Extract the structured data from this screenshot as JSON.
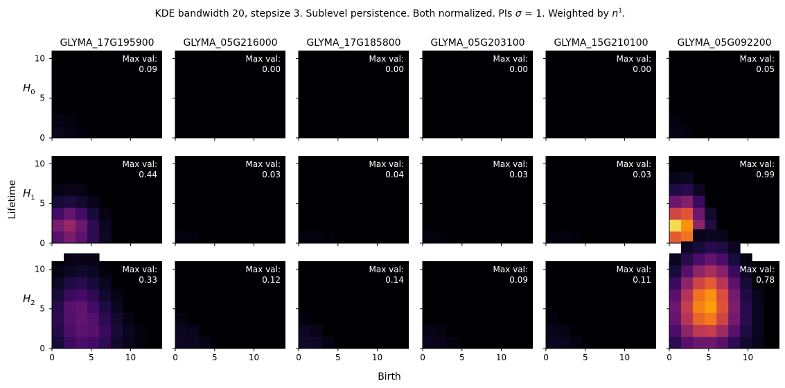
{
  "chart_data": {
    "type": "heatmap",
    "title_parts": [
      "KDE bandwidth 20, stepsize 3. Sublevel persistence. Both normalized. PIs ",
      "σ",
      " = 1. Weighted by ",
      "n",
      "1",
      "."
    ],
    "xlabel": "Birth",
    "ylabel": "Lifetime",
    "xlim": [
      0,
      14
    ],
    "ylim": [
      0,
      11
    ],
    "xticks": [
      "0",
      "5",
      "10"
    ],
    "yticks": [
      "0",
      "5",
      "10"
    ],
    "colormap": "inferno",
    "genes": [
      "GLYMA_17G195900",
      "GLYMA_05G216000",
      "GLYMA_17G185800",
      "GLYMA_05G203100",
      "GLYMA_15G210100",
      "GLYMA_05G092200"
    ],
    "homology": [
      "H0",
      "H1",
      "H2"
    ],
    "max_label": "Max val:",
    "max_values": [
      [
        "0.09",
        "0.00",
        "0.00",
        "0.00",
        "0.00",
        "0.05"
      ],
      [
        "0.44",
        "0.03",
        "0.04",
        "0.03",
        "0.03",
        "0.99"
      ],
      [
        "0.33",
        "0.12",
        "0.14",
        "0.09",
        "0.11",
        "0.78"
      ]
    ],
    "cells": [
      [
        [
          [
            0,
            0,
            0.045
          ],
          [
            1,
            0,
            0.035
          ],
          [
            0,
            1,
            0.03
          ],
          [
            1,
            1,
            0.02
          ],
          [
            2,
            0,
            0.015
          ]
        ],
        [],
        [],
        [],
        [],
        [
          [
            0,
            0,
            0.03
          ],
          [
            0,
            1,
            0.02
          ],
          [
            1,
            0,
            0.02
          ]
        ]
      ],
      [
        [
          [
            0,
            0,
            0.25
          ],
          [
            1,
            0,
            0.33
          ],
          [
            2,
            0,
            0.26
          ],
          [
            3,
            0,
            0.15
          ],
          [
            4,
            0,
            0.06
          ],
          [
            0,
            1,
            0.33
          ],
          [
            1,
            1,
            0.4
          ],
          [
            2,
            1,
            0.3
          ],
          [
            3,
            1,
            0.15
          ],
          [
            4,
            1,
            0.05
          ],
          [
            0,
            2,
            0.2
          ],
          [
            1,
            2,
            0.28
          ],
          [
            2,
            2,
            0.2
          ],
          [
            3,
            2,
            0.1
          ],
          [
            4,
            2,
            0.03
          ],
          [
            0,
            3,
            0.09
          ],
          [
            1,
            3,
            0.12
          ],
          [
            2,
            3,
            0.08
          ],
          [
            3,
            3,
            0.04
          ],
          [
            0,
            4,
            0.03
          ],
          [
            1,
            4,
            0.04
          ],
          [
            2,
            4,
            0.03
          ]
        ],
        [
          [
            0,
            0,
            0.02
          ],
          [
            1,
            0,
            0.015
          ]
        ],
        [
          [
            0,
            0,
            0.02
          ],
          [
            1,
            0,
            0.02
          ],
          [
            2,
            0,
            0.015
          ]
        ],
        [
          [
            0,
            0,
            0.02
          ],
          [
            1,
            0,
            0.015
          ]
        ],
        [
          [
            0,
            0,
            0.02
          ],
          [
            1,
            0,
            0.02
          ],
          [
            2,
            0,
            0.015
          ]
        ],
        [
          [
            0,
            0,
            0.62
          ],
          [
            1,
            0,
            0.68
          ],
          [
            2,
            0,
            0.4
          ],
          [
            3,
            0,
            0.15
          ],
          [
            4,
            0,
            0.05
          ],
          [
            0,
            1,
            0.9
          ],
          [
            1,
            1,
            0.75
          ],
          [
            2,
            1,
            0.38
          ],
          [
            3,
            1,
            0.12
          ],
          [
            0,
            2,
            0.55
          ],
          [
            1,
            2,
            0.6
          ],
          [
            2,
            2,
            0.3
          ],
          [
            3,
            2,
            0.08
          ],
          [
            0,
            3,
            0.3
          ],
          [
            1,
            3,
            0.35
          ],
          [
            2,
            3,
            0.18
          ],
          [
            0,
            4,
            0.12
          ],
          [
            1,
            4,
            0.14
          ],
          [
            2,
            4,
            0.06
          ],
          [
            0,
            5,
            0.04
          ],
          [
            1,
            5,
            0.05
          ]
        ]
      ],
      [
        [
          [
            0,
            0,
            0.1
          ],
          [
            1,
            0,
            0.18
          ],
          [
            2,
            0,
            0.22
          ],
          [
            3,
            0,
            0.2
          ],
          [
            4,
            0,
            0.15
          ],
          [
            5,
            0,
            0.08
          ],
          [
            6,
            0,
            0.04
          ],
          [
            7,
            0,
            0.02
          ],
          [
            0,
            1,
            0.13
          ],
          [
            1,
            1,
            0.22
          ],
          [
            2,
            1,
            0.26
          ],
          [
            3,
            1,
            0.25
          ],
          [
            4,
            1,
            0.18
          ],
          [
            5,
            1,
            0.1
          ],
          [
            6,
            1,
            0.05
          ],
          [
            7,
            1,
            0.02
          ],
          [
            0,
            2,
            0.15
          ],
          [
            1,
            2,
            0.24
          ],
          [
            2,
            2,
            0.28
          ],
          [
            3,
            2,
            0.24
          ],
          [
            4,
            2,
            0.15
          ],
          [
            5,
            2,
            0.08
          ],
          [
            6,
            2,
            0.03
          ],
          [
            0,
            3,
            0.14
          ],
          [
            1,
            3,
            0.25
          ],
          [
            2,
            3,
            0.27
          ],
          [
            3,
            3,
            0.2
          ],
          [
            4,
            3,
            0.12
          ],
          [
            5,
            3,
            0.05
          ],
          [
            0,
            4,
            0.1
          ],
          [
            1,
            4,
            0.18
          ],
          [
            2,
            4,
            0.2
          ],
          [
            3,
            4,
            0.15
          ],
          [
            4,
            4,
            0.08
          ],
          [
            5,
            4,
            0.03
          ],
          [
            0,
            5,
            0.06
          ],
          [
            1,
            5,
            0.12
          ],
          [
            2,
            5,
            0.14
          ],
          [
            3,
            5,
            0.1
          ],
          [
            4,
            5,
            0.05
          ],
          [
            0,
            6,
            0.03
          ],
          [
            1,
            6,
            0.06
          ],
          [
            2,
            6,
            0.08
          ],
          [
            3,
            6,
            0.06
          ],
          [
            4,
            6,
            0.02
          ],
          [
            1,
            7,
            0.03
          ],
          [
            2,
            7,
            0.04
          ],
          [
            3,
            7,
            0.03
          ]
        ],
        [
          [
            0,
            0,
            0.06
          ],
          [
            1,
            0,
            0.05
          ],
          [
            2,
            0,
            0.03
          ],
          [
            0,
            1,
            0.05
          ],
          [
            1,
            1,
            0.04
          ],
          [
            0,
            2,
            0.025
          ]
        ],
        [
          [
            0,
            0,
            0.07
          ],
          [
            1,
            0,
            0.06
          ],
          [
            2,
            0,
            0.03
          ],
          [
            0,
            1,
            0.06
          ],
          [
            1,
            1,
            0.04
          ],
          [
            0,
            2,
            0.02
          ]
        ],
        [
          [
            0,
            0,
            0.045
          ],
          [
            1,
            0,
            0.04
          ],
          [
            2,
            0,
            0.02
          ],
          [
            0,
            1,
            0.035
          ],
          [
            1,
            1,
            0.025
          ]
        ],
        [
          [
            0,
            0,
            0.055
          ],
          [
            1,
            0,
            0.045
          ],
          [
            2,
            0,
            0.025
          ],
          [
            0,
            1,
            0.04
          ],
          [
            1,
            1,
            0.03
          ],
          [
            0,
            2,
            0.02
          ]
        ],
        [
          [
            0,
            0,
            0.15
          ],
          [
            1,
            0,
            0.25
          ],
          [
            2,
            0,
            0.3
          ],
          [
            3,
            0,
            0.3
          ],
          [
            4,
            0,
            0.25
          ],
          [
            5,
            0,
            0.15
          ],
          [
            6,
            0,
            0.08
          ],
          [
            7,
            0,
            0.04
          ],
          [
            0,
            1,
            0.22
          ],
          [
            1,
            1,
            0.38
          ],
          [
            2,
            1,
            0.5
          ],
          [
            3,
            1,
            0.52
          ],
          [
            4,
            1,
            0.42
          ],
          [
            5,
            1,
            0.25
          ],
          [
            6,
            1,
            0.12
          ],
          [
            7,
            1,
            0.05
          ],
          [
            0,
            2,
            0.28
          ],
          [
            1,
            2,
            0.48
          ],
          [
            2,
            2,
            0.65
          ],
          [
            3,
            2,
            0.7
          ],
          [
            4,
            2,
            0.55
          ],
          [
            5,
            2,
            0.32
          ],
          [
            6,
            2,
            0.14
          ],
          [
            7,
            2,
            0.05
          ],
          [
            0,
            3,
            0.3
          ],
          [
            1,
            3,
            0.52
          ],
          [
            2,
            3,
            0.72
          ],
          [
            3,
            3,
            0.78
          ],
          [
            4,
            3,
            0.6
          ],
          [
            5,
            3,
            0.34
          ],
          [
            6,
            3,
            0.14
          ],
          [
            7,
            3,
            0.05
          ],
          [
            0,
            4,
            0.25
          ],
          [
            1,
            4,
            0.48
          ],
          [
            2,
            4,
            0.68
          ],
          [
            3,
            4,
            0.75
          ],
          [
            4,
            4,
            0.58
          ],
          [
            5,
            4,
            0.32
          ],
          [
            6,
            4,
            0.12
          ],
          [
            7,
            4,
            0.04
          ],
          [
            0,
            5,
            0.18
          ],
          [
            1,
            5,
            0.38
          ],
          [
            2,
            5,
            0.55
          ],
          [
            3,
            5,
            0.62
          ],
          [
            4,
            5,
            0.48
          ],
          [
            5,
            5,
            0.26
          ],
          [
            6,
            5,
            0.1
          ],
          [
            0,
            6,
            0.1
          ],
          [
            1,
            6,
            0.25
          ],
          [
            2,
            6,
            0.38
          ],
          [
            3,
            6,
            0.45
          ],
          [
            4,
            6,
            0.36
          ],
          [
            5,
            6,
            0.18
          ],
          [
            6,
            6,
            0.06
          ],
          [
            0,
            7,
            0.05
          ],
          [
            1,
            7,
            0.14
          ],
          [
            2,
            7,
            0.22
          ],
          [
            3,
            7,
            0.28
          ],
          [
            4,
            7,
            0.22
          ],
          [
            5,
            7,
            0.1
          ],
          [
            6,
            7,
            0.03
          ],
          [
            1,
            8,
            0.06
          ],
          [
            2,
            8,
            0.1
          ],
          [
            3,
            8,
            0.14
          ],
          [
            4,
            8,
            0.12
          ],
          [
            5,
            8,
            0.05
          ],
          [
            2,
            9,
            0.04
          ],
          [
            3,
            9,
            0.05
          ],
          [
            4,
            9,
            0.04
          ]
        ]
      ]
    ]
  }
}
